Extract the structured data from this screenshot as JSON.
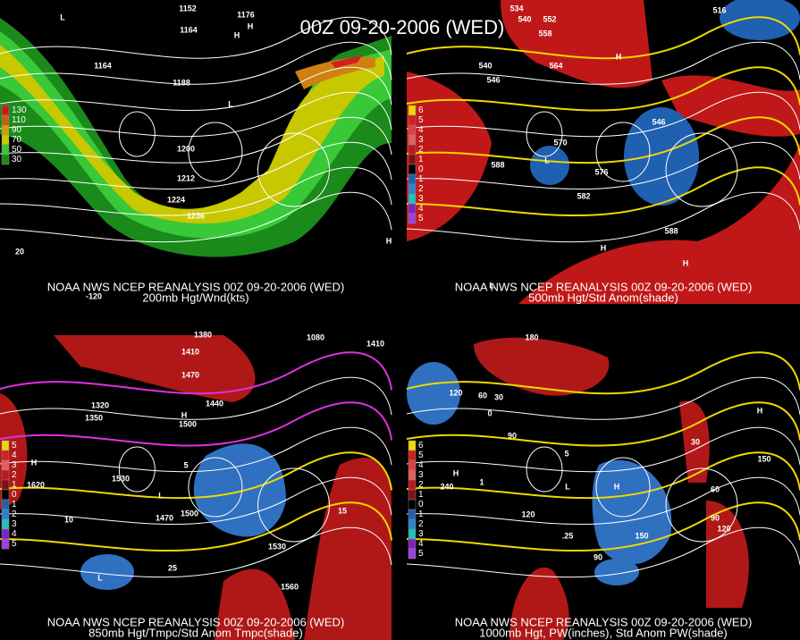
{
  "title": "00Z 09-20-2006 (WED)",
  "panels": [
    {
      "source": "NOAA NWS NCEP REANALYSIS 00Z 09-20-2006 (WED)",
      "subtitle": "200mb Hgt/Wnd(kts)",
      "legend": [
        "130",
        "110",
        "90",
        "70",
        "50",
        "30"
      ],
      "labels": [
        "1152",
        "1176",
        "1164",
        "1164",
        "1188",
        "1200",
        "1212",
        "1224",
        "1236",
        "L",
        "H",
        "H",
        "L",
        "H",
        "20",
        "-120"
      ]
    },
    {
      "source": "NOAA NWS NCEP REANALYSIS 00Z 09-20-2006 (WED)",
      "subtitle": "500mb Hgt/Std Anom(shade)",
      "legend": [
        "6",
        "5",
        "4",
        "3",
        "2",
        "1",
        "0",
        "1",
        "2",
        "3",
        "4",
        "5"
      ],
      "labels": [
        "534",
        "540",
        "552",
        "558",
        "564",
        "540",
        "546",
        "546",
        "570",
        "588",
        "576",
        "582",
        "588",
        "L",
        "L",
        "H",
        "H",
        "H",
        "516"
      ]
    },
    {
      "source": "NOAA NWS NCEP REANALYSIS 00Z 09-20-2006 (WED)",
      "subtitle": "850mb Hgt/Tmpc/Std Anom Tmpc(shade)",
      "legend": [
        "5",
        "4",
        "3",
        "2",
        "1",
        "0",
        "1",
        "2",
        "3",
        "4",
        "5"
      ],
      "labels": [
        "1380",
        "1410",
        "1410",
        "1470",
        "1440",
        "1320",
        "1350",
        "1500",
        "1530",
        "1620",
        "1470",
        "1500",
        "1530",
        "1560",
        "1080",
        "10",
        "5",
        "15",
        "25",
        "H",
        "L",
        "H",
        "L"
      ]
    },
    {
      "source": "NOAA NWS NCEP REANALYSIS 00Z 09-20-2006 (WED)",
      "subtitle": "1000mb Hgt, PW(inches), Std Anom PW(shade)",
      "legend": [
        "6",
        "5",
        "4",
        "3",
        "2",
        "1",
        "0",
        "1",
        "2",
        "3",
        "4",
        "5"
      ],
      "labels": [
        "180",
        "120",
        "60",
        "30",
        "0",
        "90",
        "150",
        "240",
        "120",
        "90",
        "150",
        "60",
        "90",
        "120",
        "30",
        ".25",
        "5",
        "1",
        "H",
        "H",
        "L",
        "H"
      ]
    }
  ]
}
